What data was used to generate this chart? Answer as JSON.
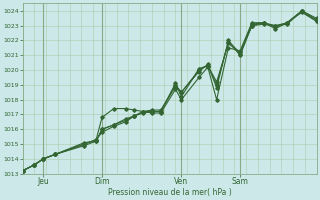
{
  "title": "",
  "xlabel": "Pression niveau de la mer( hPa )",
  "bg_color": "#cce8e8",
  "grid_color_minor": "#aaccaa",
  "grid_color_major": "#88aa88",
  "line_color": "#336633",
  "ylim": [
    1013,
    1024.5
  ],
  "yticks": [
    1013,
    1014,
    1015,
    1016,
    1017,
    1018,
    1019,
    1020,
    1021,
    1022,
    1023,
    1024
  ],
  "xlim": [
    0,
    1.0
  ],
  "day_labels": [
    "Jeu",
    "Dim",
    "Ven",
    "Sam"
  ],
  "day_positions": [
    0.07,
    0.27,
    0.54,
    0.74
  ],
  "major_vlines": [
    0.07,
    0.27,
    0.54,
    0.74
  ],
  "lines": [
    {
      "x": [
        0.0,
        0.04,
        0.07,
        0.11,
        0.21,
        0.25,
        0.27,
        0.31,
        0.35,
        0.38,
        0.41,
        0.44,
        0.47,
        0.52,
        0.54,
        0.6,
        0.63,
        0.66,
        0.7,
        0.74,
        0.78,
        0.82,
        0.86,
        0.9,
        0.95,
        1.0
      ],
      "y": [
        1013.2,
        1013.6,
        1014.0,
        1014.3,
        1014.9,
        1015.2,
        1016.0,
        1016.3,
        1016.6,
        1016.9,
        1017.2,
        1017.2,
        1017.2,
        1019.0,
        1018.5,
        1020.0,
        1020.3,
        1019.0,
        1021.9,
        1021.0,
        1023.0,
        1023.2,
        1022.8,
        1023.2,
        1024.0,
        1023.5
      ]
    },
    {
      "x": [
        0.0,
        0.04,
        0.07,
        0.11,
        0.21,
        0.25,
        0.27,
        0.31,
        0.35,
        0.38,
        0.41,
        0.44,
        0.47,
        0.52,
        0.54,
        0.6,
        0.63,
        0.66,
        0.7,
        0.74,
        0.78,
        0.82,
        0.86,
        0.9,
        0.95,
        1.0
      ],
      "y": [
        1013.2,
        1013.6,
        1014.0,
        1014.3,
        1015.0,
        1015.3,
        1015.8,
        1016.2,
        1016.5,
        1016.9,
        1017.2,
        1017.1,
        1017.1,
        1018.7,
        1018.0,
        1019.5,
        1020.2,
        1018.0,
        1021.5,
        1021.3,
        1023.2,
        1023.2,
        1022.9,
        1023.2,
        1023.9,
        1023.3
      ]
    },
    {
      "x": [
        0.0,
        0.04,
        0.07,
        0.11,
        0.21,
        0.25,
        0.27,
        0.31,
        0.35,
        0.38,
        0.41,
        0.44,
        0.47,
        0.52,
        0.54,
        0.6,
        0.63,
        0.66,
        0.7,
        0.74,
        0.78,
        0.82,
        0.86,
        0.9,
        0.95,
        1.0
      ],
      "y": [
        1013.2,
        1013.6,
        1014.0,
        1014.3,
        1015.0,
        1015.3,
        1016.8,
        1017.4,
        1017.4,
        1017.3,
        1017.2,
        1017.3,
        1017.3,
        1018.9,
        1018.5,
        1019.9,
        1020.4,
        1018.8,
        1022.0,
        1021.1,
        1023.1,
        1023.2,
        1023.0,
        1023.2,
        1024.0,
        1023.4
      ]
    },
    {
      "x": [
        0.0,
        0.04,
        0.07,
        0.11,
        0.21,
        0.25,
        0.27,
        0.31,
        0.35,
        0.38,
        0.41,
        0.44,
        0.47,
        0.52,
        0.54,
        0.6,
        0.63,
        0.66,
        0.7,
        0.74,
        0.78,
        0.82,
        0.86,
        0.9,
        0.95,
        1.0
      ],
      "y": [
        1013.2,
        1013.6,
        1014.0,
        1014.3,
        1015.1,
        1015.2,
        1016.0,
        1016.3,
        1016.7,
        1016.9,
        1017.1,
        1017.2,
        1017.2,
        1019.1,
        1018.2,
        1020.1,
        1020.3,
        1019.2,
        1021.8,
        1021.2,
        1023.0,
        1023.1,
        1023.0,
        1023.1,
        1024.0,
        1023.3
      ]
    }
  ]
}
